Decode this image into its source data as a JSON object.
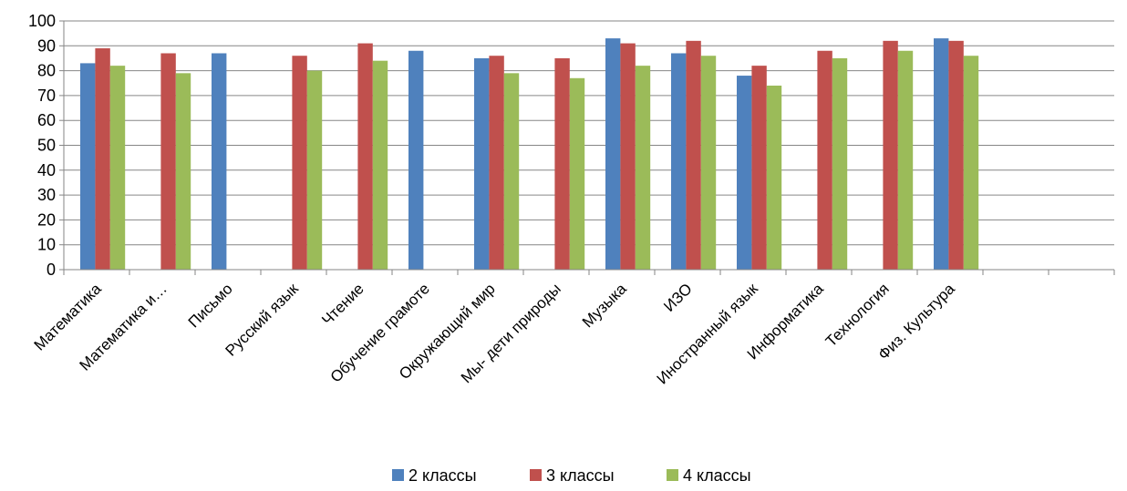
{
  "chart_data": {
    "type": "bar",
    "title": "",
    "xlabel": "",
    "ylabel": "",
    "ylim": [
      0,
      100
    ],
    "yticks": [
      0,
      10,
      20,
      30,
      40,
      50,
      60,
      70,
      80,
      90,
      100
    ],
    "grid": true,
    "legend_position": "bottom",
    "categories": [
      "Математика",
      "Математика и…",
      "Письмо",
      "Русский язык",
      "Чтение",
      "Обучение грамоте",
      "Окружающий мир",
      "Мы- дети природы",
      "Музыка",
      "ИЗО",
      "Иностранный язык",
      "Информатика",
      "Технология",
      "Физ. Культура",
      "",
      ""
    ],
    "series": [
      {
        "name": "2 классы",
        "color": "#4f81bd",
        "values": [
          83,
          null,
          87,
          null,
          null,
          88,
          85,
          null,
          93,
          87,
          78,
          null,
          null,
          93,
          null,
          null
        ]
      },
      {
        "name": "3 классы",
        "color": "#c0504d",
        "values": [
          89,
          87,
          null,
          86,
          91,
          null,
          86,
          85,
          91,
          92,
          82,
          88,
          92,
          92,
          null,
          null
        ]
      },
      {
        "name": "4 классы",
        "color": "#9bbb59",
        "values": [
          82,
          79,
          null,
          80,
          84,
          null,
          79,
          77,
          82,
          86,
          74,
          85,
          88,
          86,
          null,
          null
        ]
      }
    ]
  }
}
